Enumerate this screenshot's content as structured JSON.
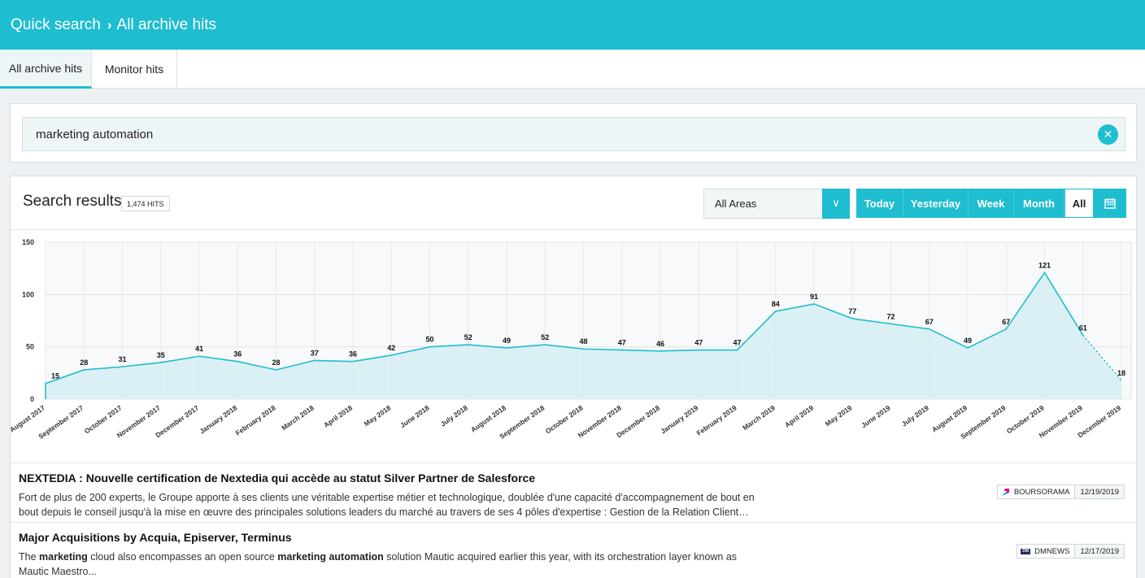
{
  "breadcrumb": {
    "root": "Quick search",
    "current": "All archive hits"
  },
  "tabs": [
    {
      "label": "All archive hits"
    },
    {
      "label": "Monitor hits"
    }
  ],
  "search": {
    "value": "marketing automation"
  },
  "results": {
    "title": "Search results",
    "hits": "1,474 HITS",
    "area": "All Areas",
    "ranges": [
      "Today",
      "Yesterday",
      "Week",
      "Month",
      "All"
    ]
  },
  "colors": {
    "accent": "#1fbdd0"
  },
  "chart_data": {
    "type": "area",
    "x": [
      "August 2017",
      "September 2017",
      "October 2017",
      "November 2017",
      "December 2017",
      "January 2018",
      "February 2018",
      "March 2018",
      "April 2018",
      "May 2018",
      "June 2018",
      "July 2018",
      "August 2018",
      "September 2018",
      "October 2018",
      "November 2018",
      "December 2018",
      "January 2019",
      "February 2019",
      "March 2019",
      "April 2019",
      "May 2019",
      "June 2019",
      "July 2019",
      "August 2019",
      "September 2019",
      "October 2019",
      "November 2019",
      "December 2019"
    ],
    "values": [
      15,
      28,
      31,
      35,
      41,
      36,
      28,
      37,
      36,
      42,
      50,
      52,
      49,
      52,
      48,
      47,
      46,
      47,
      47,
      84,
      91,
      77,
      72,
      67,
      49,
      67,
      121,
      61,
      18
    ],
    "first_value": 15,
    "ylim": [
      0,
      150
    ],
    "yticks": [
      0,
      50,
      100,
      150
    ],
    "grid": true,
    "last_segment_style": "dotted"
  },
  "articles": [
    {
      "title": "NEXTEDIA : Nouvelle certification de Nextedia qui accède au statut Silver Partner de Salesforce",
      "snippet": "Fort de plus de 200 experts, le Groupe apporte à ses clients une véritable expertise métier et technologique, doublée d'une capacité d'accompagnement de bout en bout depuis le conseil jusqu'à la mise en œuvre des principales solutions leaders du marché au travers de ses 4 pôles d'expertise : Gestion de la Relation Client…",
      "source": "BOURSORAMA",
      "date": "12/19/2019"
    },
    {
      "title": "Major Acquisitions by Acquia, Episerver, Terminus",
      "snippet_parts": [
        "The ",
        "marketing",
        " cloud also encompasses an open source ",
        "marketing automation",
        " solution Mautic acquired earlier this year, with its orchestration layer known as Mautic Maestro..."
      ],
      "source": "DMNEWS",
      "source_logo_text": "DM",
      "date": "12/17/2019"
    }
  ]
}
